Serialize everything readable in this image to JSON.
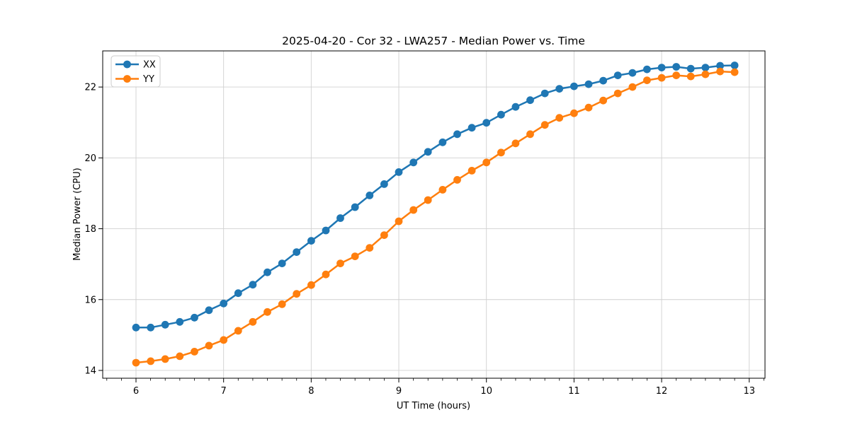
{
  "figure": {
    "title": "2025-04-20 - Cor 32 - LWA257 - Median Power vs. Time"
  },
  "chart_data": {
    "type": "line",
    "title": "2025-04-20 - Cor 32 - LWA257 - Median Power vs. Time",
    "xlabel": "UT Time (hours)",
    "ylabel": "Median Power (CPU)",
    "xlim": [
      5.62,
      13.18
    ],
    "ylim": [
      13.78,
      23.02
    ],
    "xticks": [
      6,
      7,
      8,
      9,
      10,
      11,
      12,
      13
    ],
    "yticks": [
      14,
      16,
      18,
      20,
      22
    ],
    "x_minor_step_hours": 0.1667,
    "grid": true,
    "legend_position": "upper left",
    "x": [
      6.0,
      6.167,
      6.333,
      6.5,
      6.667,
      6.833,
      7.0,
      7.167,
      7.333,
      7.5,
      7.667,
      7.833,
      8.0,
      8.167,
      8.333,
      8.5,
      8.667,
      8.833,
      9.0,
      9.167,
      9.333,
      9.5,
      9.667,
      9.833,
      10.0,
      10.167,
      10.333,
      10.5,
      10.667,
      10.833,
      11.0,
      11.167,
      11.333,
      11.5,
      11.667,
      11.833,
      12.0,
      12.167,
      12.333,
      12.5,
      12.667,
      12.833
    ],
    "series": [
      {
        "name": "XX",
        "color": "#1f77b4",
        "marker": "circle",
        "values": [
          15.21,
          15.21,
          15.29,
          15.37,
          15.49,
          15.7,
          15.89,
          16.18,
          16.42,
          16.77,
          17.02,
          17.34,
          17.66,
          17.95,
          18.3,
          18.61,
          18.94,
          19.26,
          19.6,
          19.87,
          20.17,
          20.44,
          20.67,
          20.85,
          20.99,
          21.22,
          21.44,
          21.63,
          21.82,
          21.95,
          22.02,
          22.08,
          22.18,
          22.33,
          22.4,
          22.5,
          22.55,
          22.57,
          22.52,
          22.55,
          22.6,
          22.61
        ]
      },
      {
        "name": "YY",
        "color": "#ff7f0e",
        "marker": "circle",
        "values": [
          14.22,
          14.26,
          14.32,
          14.4,
          14.53,
          14.7,
          14.86,
          15.12,
          15.37,
          15.65,
          15.87,
          16.16,
          16.41,
          16.71,
          17.02,
          17.22,
          17.46,
          17.82,
          18.21,
          18.53,
          18.81,
          19.1,
          19.38,
          19.64,
          19.87,
          20.15,
          20.41,
          20.67,
          20.93,
          21.13,
          21.26,
          21.42,
          21.62,
          21.82,
          22.0,
          22.19,
          22.26,
          22.33,
          22.3,
          22.36,
          22.44,
          22.42
        ]
      }
    ],
    "colors": {
      "background": "#ffffff",
      "grid": "#d0d0d0",
      "spine": "#000000",
      "text": "#000000",
      "series_xx": "#1f77b4",
      "series_yy": "#ff7f0e"
    }
  }
}
